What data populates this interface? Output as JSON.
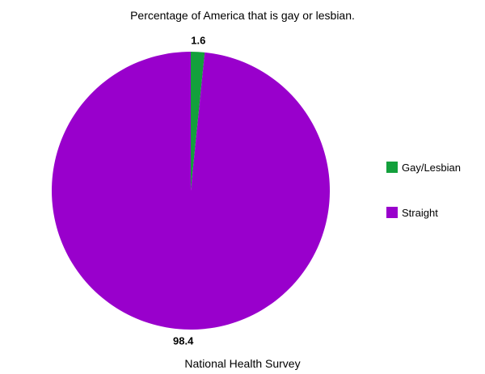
{
  "chart_data": {
    "type": "pie",
    "title": "Percentage of America that is gay or lesbian.",
    "caption": "National Health Survey",
    "slices": [
      {
        "label": "Gay/Lesbian",
        "value": 1.6,
        "value_label": "1.6",
        "color": "#13a03c"
      },
      {
        "label": "Straight",
        "value": 98.4,
        "value_label": "98.4",
        "color": "#9900cc"
      }
    ],
    "legend_position": "right"
  }
}
